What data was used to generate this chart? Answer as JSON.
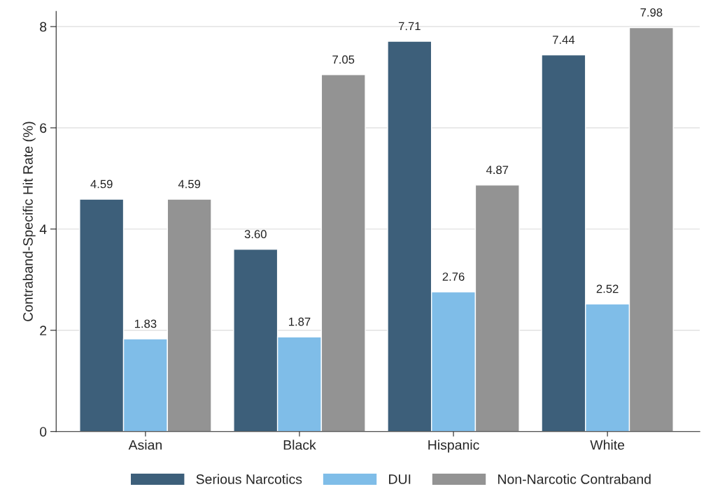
{
  "chart_data": {
    "type": "bar",
    "ylabel": "Contraband-Specific Hit Rate (%)",
    "categories": [
      "Asian",
      "Black",
      "Hispanic",
      "White"
    ],
    "series": [
      {
        "name": "Serious Narcotics",
        "color": "#3d5f7a",
        "values": [
          4.59,
          3.6,
          7.71,
          7.44
        ],
        "value_labels": [
          "4.59",
          "3.60",
          "7.71",
          "7.44"
        ]
      },
      {
        "name": "DUI",
        "color": "#7fbde8",
        "values": [
          1.83,
          1.87,
          2.76,
          2.52
        ],
        "value_labels": [
          "1.83",
          "1.87",
          "2.76",
          "2.52"
        ]
      },
      {
        "name": "Non-Narcotic Contraband",
        "color": "#939393",
        "values": [
          4.59,
          7.05,
          4.87,
          7.98
        ],
        "value_labels": [
          "4.59",
          "7.05",
          "4.87",
          "7.98"
        ]
      }
    ],
    "ylim": [
      0,
      8.3
    ],
    "yticks": [
      0,
      2,
      4,
      6,
      8
    ],
    "grid": "y",
    "legend": "bottom"
  }
}
